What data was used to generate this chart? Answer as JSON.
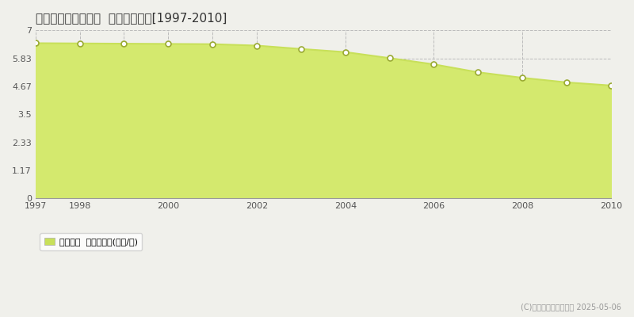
{
  "title": "双葉郡富岡町上手岡  基準地価推移[1997-2010]",
  "years": [
    1997,
    1998,
    1999,
    2000,
    2001,
    2002,
    2003,
    2004,
    2005,
    2006,
    2007,
    2008,
    2009,
    2010
  ],
  "values": [
    6.46,
    6.45,
    6.44,
    6.43,
    6.42,
    6.36,
    6.22,
    6.09,
    5.84,
    5.58,
    5.25,
    5.02,
    4.83,
    4.7
  ],
  "ylim": [
    0,
    7
  ],
  "yticks": [
    0,
    1.17,
    2.33,
    3.5,
    4.67,
    5.83,
    7
  ],
  "ytick_labels": [
    "0",
    "1.17",
    "2.33",
    "3.5",
    "4.67",
    "5.83",
    "7"
  ],
  "xticks": [
    1997,
    1998,
    1999,
    2000,
    2001,
    2002,
    2004,
    2006,
    2008,
    2010
  ],
  "xtick_labels": [
    "1997",
    "1998",
    "",
    "2000",
    "",
    "2002",
    "2004",
    "2006",
    "2008",
    "2010"
  ],
  "line_color": "#c8e05a",
  "fill_color": "#d4e96e",
  "marker_facecolor": "#ffffff",
  "marker_edgecolor": "#9aaa33",
  "background_color": "#f0f0eb",
  "plot_bg_color": "#f0f0eb",
  "grid_color": "#bbbbbb",
  "legend_label": "基準地価  平均坪単価(万円/坪)",
  "copyright_text": "(C)土地価格ドットコム 2025-05-06",
  "legend_marker_color": "#c8e05a",
  "title_fontsize": 11,
  "tick_fontsize": 8,
  "figsize": [
    8.0,
    4.0
  ],
  "dpi": 100
}
